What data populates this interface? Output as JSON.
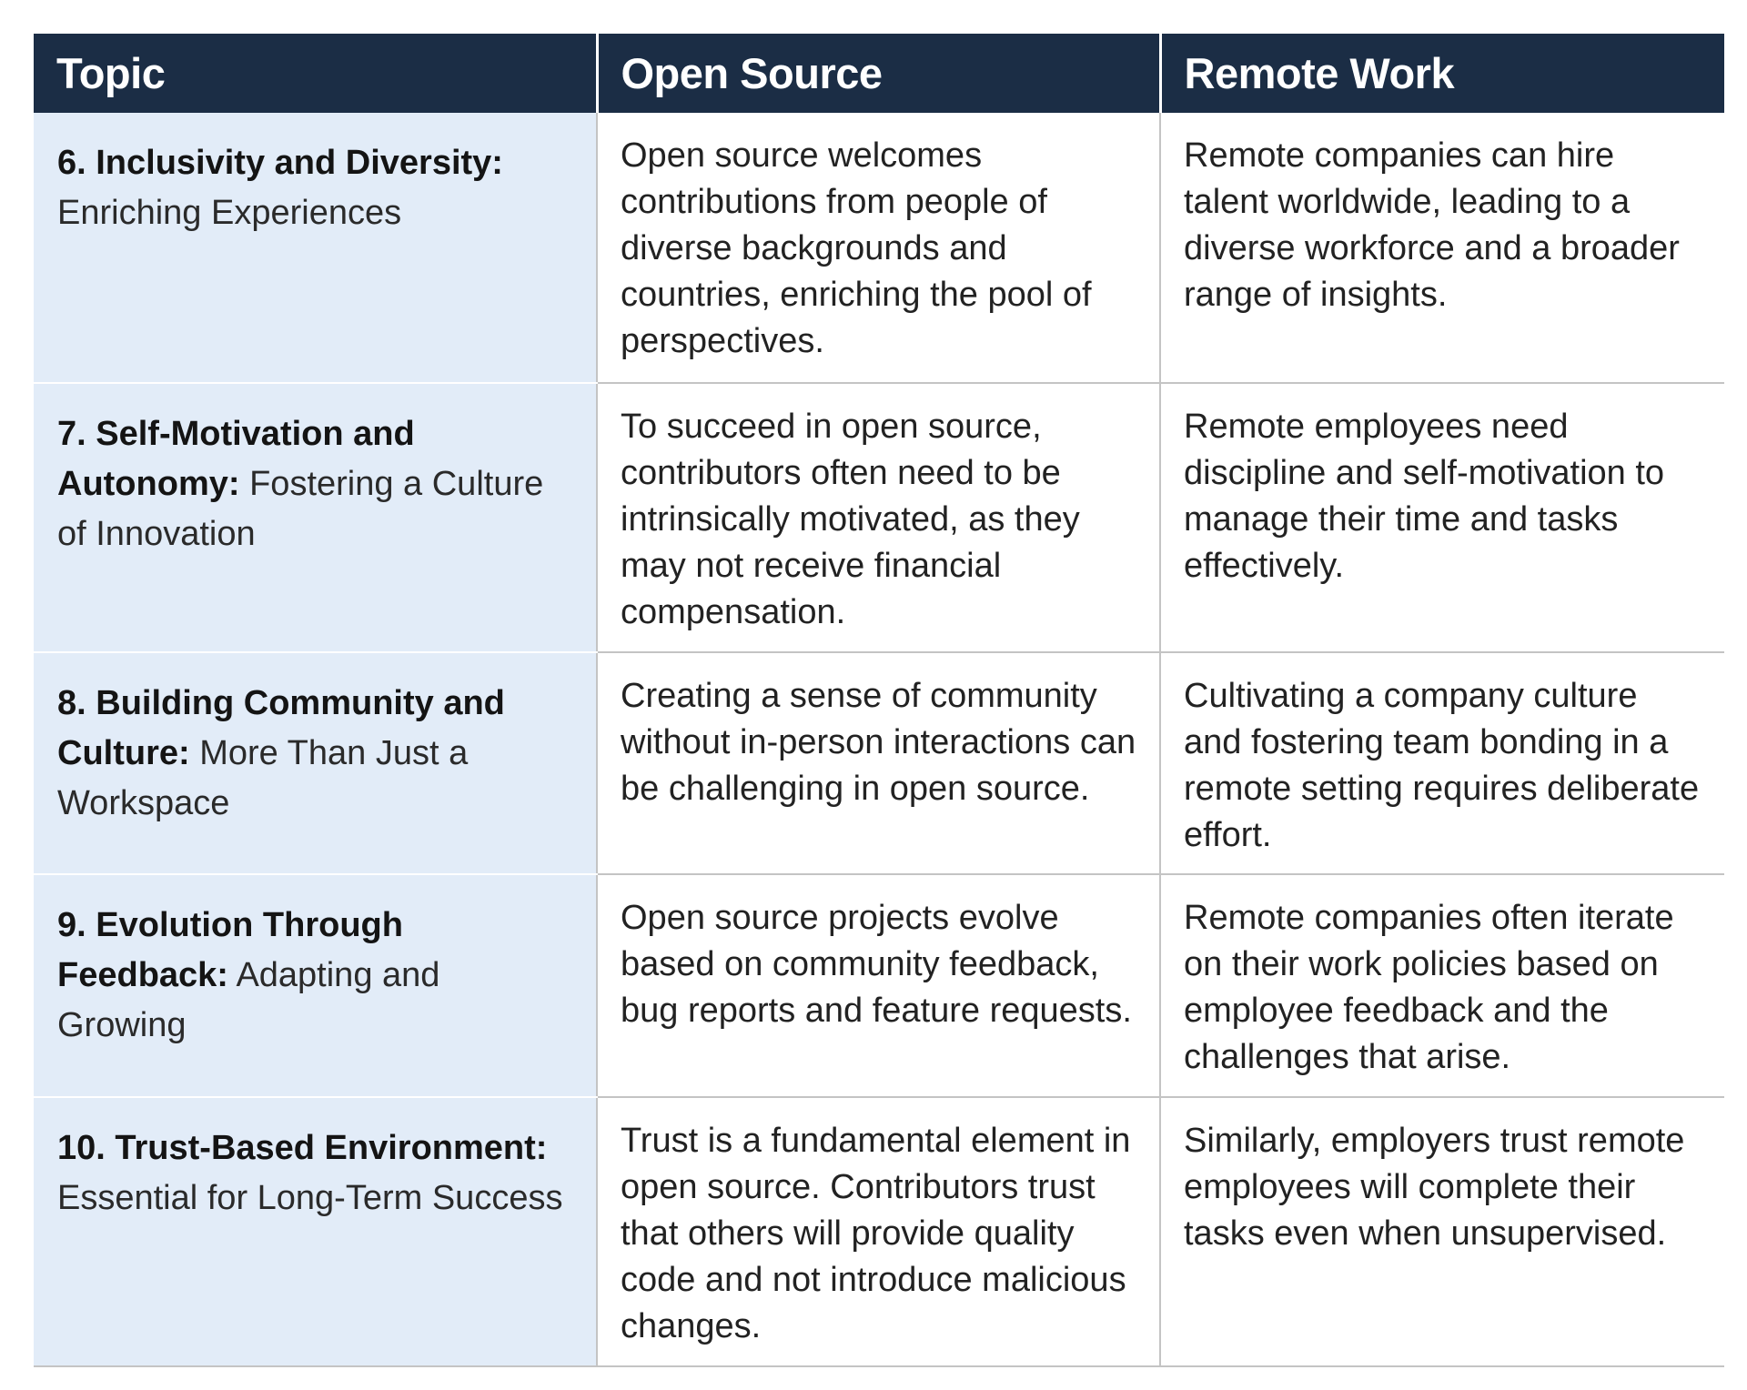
{
  "header": {
    "col_topic": "Topic",
    "col_open_source": "Open Source",
    "col_remote_work": "Remote Work"
  },
  "colors": {
    "header_bg": "#1b2d45",
    "topic_bg": "#e2ecf8",
    "rule": "#c4c4c4"
  },
  "rows": [
    {
      "topic_title": "6. Inclusivity and Diversity:",
      "topic_sub": "Enriching Experiences",
      "open_source": "Open source welcomes contributions from people of diverse backgrounds and countries, enriching the pool of perspectives.",
      "remote_work": "Remote companies can hire talent worldwide, leading to a diverse workforce and a broader range of insights."
    },
    {
      "topic_title": "7. Self-Motivation and Autonomy:",
      "topic_sub": "Fostering a Culture of Innovation",
      "open_source": "To succeed in open source, contributors often need to be intrinsically motivated, as they may not receive financial compensation.",
      "remote_work": "Remote employees need discipline and self-motivation to manage their time and tasks effectively."
    },
    {
      "topic_title": "8. Building Community and Culture:",
      "topic_sub": "More Than Just a Workspace",
      "open_source": "Creating a sense of community without in-person interactions can be challenging in open source.",
      "remote_work": "Cultivating a company culture and fostering team bonding in a remote setting requires deliberate effort."
    },
    {
      "topic_title": "9. Evolution Through Feedback:",
      "topic_sub": "Adapting and Growing",
      "open_source": "Open source projects evolve based on community feedback, bug reports and feature requests.",
      "remote_work": "Remote companies often iterate on their work policies based on employee feedback and the challenges that arise."
    },
    {
      "topic_title": "10. Trust-Based Environment:",
      "topic_sub": "Essential for Long-Term Success",
      "open_source": "Trust is a fundamental element in open source. Contributors trust that others will provide quality code and not introduce malicious changes.",
      "remote_work": "Similarly, employers trust remote employees will complete their tasks even when unsupervised."
    }
  ]
}
